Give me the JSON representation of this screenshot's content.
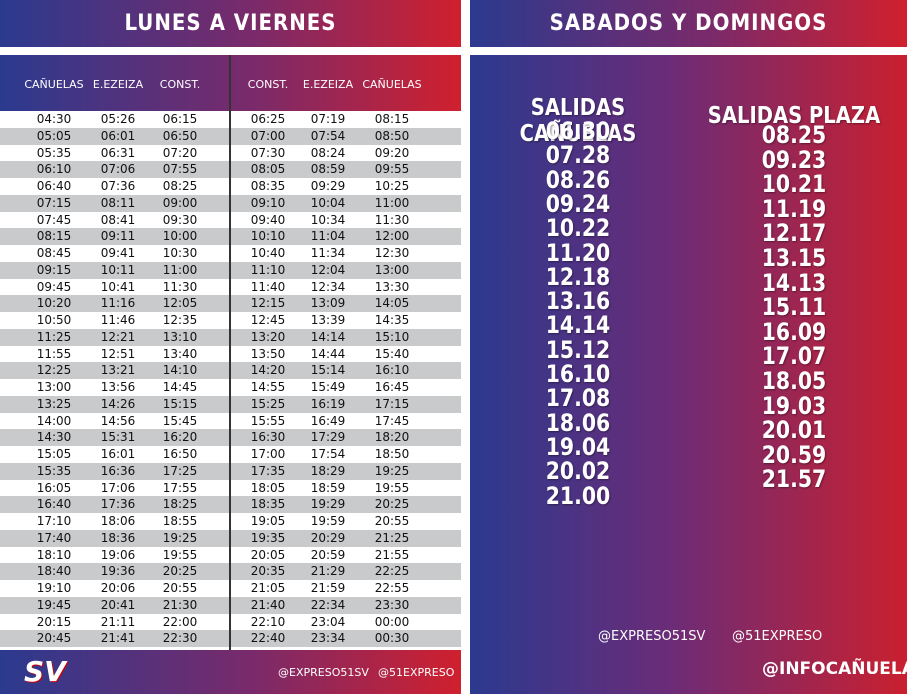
{
  "left": {
    "title": "LUNES A VIERNES",
    "headers": [
      "CAÑUELAS",
      "E.EZEIZA",
      "CONST.",
      "CONST.",
      "E.EZEIZA",
      "CAÑUELAS"
    ],
    "rows": [
      [
        "04:30",
        "05:26",
        "06:15",
        "06:25",
        "07:19",
        "08:15"
      ],
      [
        "05:05",
        "06:01",
        "06:50",
        "07:00",
        "07:54",
        "08:50"
      ],
      [
        "05:35",
        "06:31",
        "07:20",
        "07:30",
        "08:24",
        "09:20"
      ],
      [
        "06:10",
        "07:06",
        "07:55",
        "08:05",
        "08:59",
        "09:55"
      ],
      [
        "06:40",
        "07:36",
        "08:25",
        "08:35",
        "09:29",
        "10:25"
      ],
      [
        "07:15",
        "08:11",
        "09:00",
        "09:10",
        "10:04",
        "11:00"
      ],
      [
        "07:45",
        "08:41",
        "09:30",
        "09:40",
        "10:34",
        "11:30"
      ],
      [
        "08:15",
        "09:11",
        "10:00",
        "10:10",
        "11:04",
        "12:00"
      ],
      [
        "08:45",
        "09:41",
        "10:30",
        "10:40",
        "11:34",
        "12:30"
      ],
      [
        "09:15",
        "10:11",
        "11:00",
        "11:10",
        "12:04",
        "13:00"
      ],
      [
        "09:45",
        "10:41",
        "11:30",
        "11:40",
        "12:34",
        "13:30"
      ],
      [
        "10:20",
        "11:16",
        "12:05",
        "12:15",
        "13:09",
        "14:05"
      ],
      [
        "10:50",
        "11:46",
        "12:35",
        "12:45",
        "13:39",
        "14:35"
      ],
      [
        "11:25",
        "12:21",
        "13:10",
        "13:20",
        "14:14",
        "15:10"
      ],
      [
        "11:55",
        "12:51",
        "13:40",
        "13:50",
        "14:44",
        "15:40"
      ],
      [
        "12:25",
        "13:21",
        "14:10",
        "14:20",
        "15:14",
        "16:10"
      ],
      [
        "13:00",
        "13:56",
        "14:45",
        "14:55",
        "15:49",
        "16:45"
      ],
      [
        "13:25",
        "14:26",
        "15:15",
        "15:25",
        "16:19",
        "17:15"
      ],
      [
        "14:00",
        "14:56",
        "15:45",
        "15:55",
        "16:49",
        "17:45"
      ],
      [
        "14:30",
        "15:31",
        "16:20",
        "16:30",
        "17:29",
        "18:20"
      ],
      [
        "15:05",
        "16:01",
        "16:50",
        "17:00",
        "17:54",
        "18:50"
      ],
      [
        "15:35",
        "16:36",
        "17:25",
        "17:35",
        "18:29",
        "19:25"
      ],
      [
        "16:05",
        "17:06",
        "17:55",
        "18:05",
        "18:59",
        "19:55"
      ],
      [
        "16:40",
        "17:36",
        "18:25",
        "18:35",
        "19:29",
        "20:25"
      ],
      [
        "17:10",
        "18:06",
        "18:55",
        "19:05",
        "19:59",
        "20:55"
      ],
      [
        "17:40",
        "18:36",
        "19:25",
        "19:35",
        "20:29",
        "21:25"
      ],
      [
        "18:10",
        "19:06",
        "19:55",
        "20:05",
        "20:59",
        "21:55"
      ],
      [
        "18:40",
        "19:36",
        "20:25",
        "20:35",
        "21:29",
        "22:25"
      ],
      [
        "19:10",
        "20:06",
        "20:55",
        "21:05",
        "21:59",
        "22:55"
      ],
      [
        "19:45",
        "20:41",
        "21:30",
        "21:40",
        "22:34",
        "23:30"
      ],
      [
        "20:15",
        "21:11",
        "22:00",
        "22:10",
        "23:04",
        "00:00"
      ],
      [
        "20:45",
        "21:41",
        "22:30",
        "22:40",
        "23:34",
        "00:30"
      ]
    ],
    "footer": {
      "logo": "SV",
      "instagram": "@EXPRESO51SV",
      "twitter": "@51EXPRESO"
    }
  },
  "right": {
    "title": "SABADOS Y DOMINGOS",
    "columns": [
      {
        "heading": "SALIDAS CAÑUELAS",
        "times": [
          "06.30",
          "07.28",
          "08.26",
          "09.24",
          "10.22",
          "11.20",
          "12.18",
          "13.16",
          "14.14",
          "15.12",
          "16.10",
          "17.08",
          "18.06",
          "19.04",
          "20.02",
          "21.00"
        ]
      },
      {
        "heading": "SALIDAS PLAZA",
        "times": [
          "08.25",
          "09.23",
          "10.21",
          "11.19",
          "12.17",
          "13.15",
          "14.13",
          "15.11",
          "16.09",
          "17.07",
          "18.05",
          "19.03",
          "20.01",
          "20.59",
          "21.57"
        ]
      }
    ],
    "footer": {
      "instagram": "@EXPRESO51SV",
      "twitter": "@51EXPRESO",
      "tag": "@INFOCAÑUELAS"
    }
  }
}
